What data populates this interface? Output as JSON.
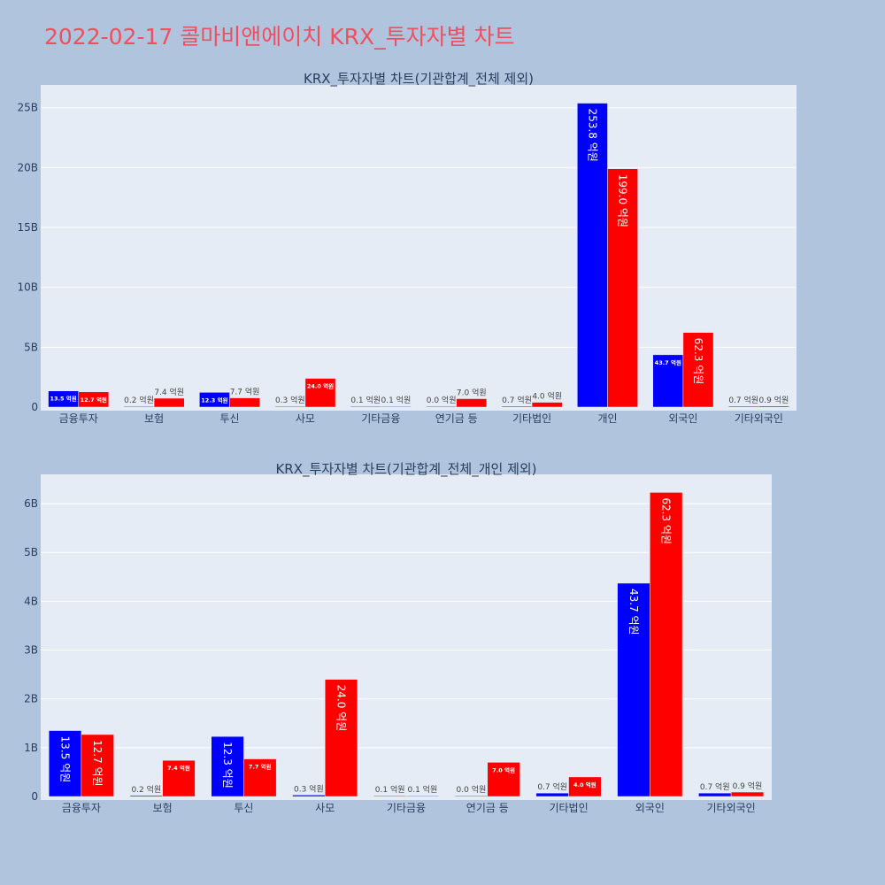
{
  "page": {
    "title": "2022-02-17 콜마비앤에이치 KRX_투자자별 차트"
  },
  "colors": {
    "buy": "#0000ff",
    "sell": "#ff0000",
    "plot_bg": "#e5ecf6",
    "page_bg": "#b0c4de",
    "text": "#2a3f5f"
  },
  "chart_data": [
    {
      "type": "bar",
      "title": "KRX_투자자별 차트(기관합계_전체 제외)",
      "categories": [
        "금융투자",
        "보험",
        "투신",
        "사모",
        "기타금융",
        "연기금 등",
        "기타법인",
        "개인",
        "외국인",
        "기타외국인"
      ],
      "series": [
        {
          "color": "#0000ff",
          "values": [
            1.35,
            0.02,
            1.23,
            0.03,
            0.01,
            0.0,
            0.07,
            25.38,
            4.37,
            0.07
          ],
          "labels": [
            "13.5 억원",
            "0.2 억원",
            "12.3 억원",
            "0.3 억원",
            "0.1 억원",
            "0.0 억원",
            "0.7 억원",
            "253.8 억원",
            "43.7 억원",
            "0.7 억원"
          ]
        },
        {
          "color": "#ff0000",
          "values": [
            1.27,
            0.74,
            0.77,
            2.4,
            0.01,
            0.7,
            0.4,
            19.9,
            6.23,
            0.09
          ],
          "labels": [
            "12.7 억원",
            "7.4 억원",
            "7.7 억원",
            "24.0 억원",
            "0.1 억원",
            "7.0 억원",
            "4.0 억원",
            "199.0 억원",
            "62.3 억원",
            "0.9 억원"
          ]
        }
      ],
      "ylim": [
        0,
        26.9
      ],
      "yticks": [
        0,
        5,
        10,
        15,
        20,
        25
      ],
      "ytick_labels": [
        "0",
        "5B",
        "10B",
        "15B",
        "20B",
        "25B"
      ],
      "grid": true
    },
    {
      "type": "bar",
      "title": "KRX_투자자별 차트(기관합계_전체_개인 제외)",
      "categories": [
        "금융투자",
        "보험",
        "투신",
        "사모",
        "기타금융",
        "연기금 등",
        "기타법인",
        "외국인",
        "기타외국인"
      ],
      "series": [
        {
          "color": "#0000ff",
          "values": [
            1.35,
            0.02,
            1.23,
            0.03,
            0.01,
            0.0,
            0.07,
            4.37,
            0.07
          ],
          "labels": [
            "13.5 억원",
            "0.2 억원",
            "12.3 억원",
            "0.3 억원",
            "0.1 억원",
            "0.0 억원",
            "0.7 억원",
            "43.7 억원",
            "0.7 억원"
          ]
        },
        {
          "color": "#ff0000",
          "values": [
            1.27,
            0.74,
            0.77,
            2.4,
            0.01,
            0.7,
            0.4,
            6.23,
            0.09
          ],
          "labels": [
            "12.7 억원",
            "7.4 억원",
            "7.7 억원",
            "24.0 억원",
            "0.1 억원",
            "7.0 억원",
            "4.0 억원",
            "62.3 억원",
            "0.9 억원"
          ]
        }
      ],
      "ylim": [
        0,
        6.6
      ],
      "yticks": [
        0,
        1,
        2,
        3,
        4,
        5,
        6
      ],
      "ytick_labels": [
        "0",
        "1B",
        "2B",
        "3B",
        "4B",
        "5B",
        "6B"
      ],
      "grid": true
    }
  ]
}
